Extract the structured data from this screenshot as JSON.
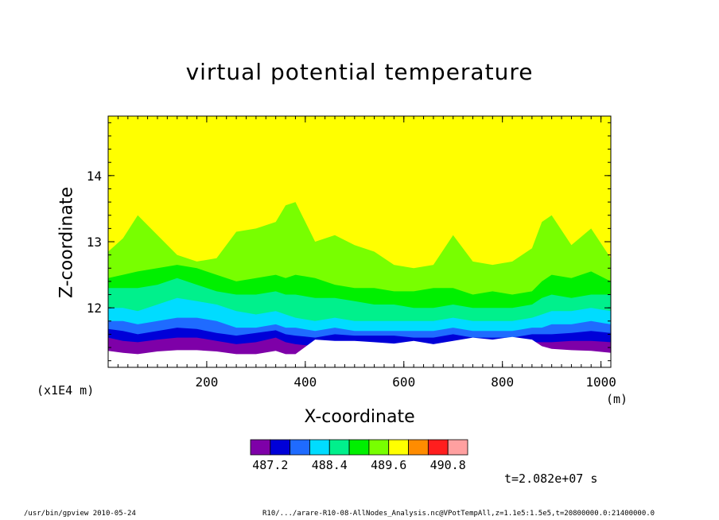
{
  "chart_data": {
    "type": "heatmap",
    "title": "virtual potential temperature",
    "xlabel": "X-coordinate",
    "ylabel": "Z-coordinate",
    "x_unit": "(m)",
    "y_scale_note": "(x1E4 m)",
    "xlim": [
      0,
      1020
    ],
    "ylim": [
      11.1,
      14.9
    ],
    "x_ticks": [
      200,
      400,
      600,
      800,
      1000
    ],
    "x_tick_labels": [
      "200",
      "400",
      "600",
      "800",
      "1000"
    ],
    "y_ticks": [
      12,
      13,
      14
    ],
    "y_tick_labels": [
      "12",
      "13",
      "14"
    ],
    "colorbar": {
      "levels": [
        487.0,
        487.2,
        487.6,
        488.0,
        488.4,
        488.8,
        489.2,
        489.6,
        490.0,
        490.4,
        490.8,
        491.2
      ],
      "labels": [
        "487.2",
        "488.4",
        "489.6",
        "490.8"
      ],
      "colors": [
        "#7e00a8",
        "#0000d8",
        "#1f6bff",
        "#00dcff",
        "#00f08c",
        "#00f000",
        "#78ff00",
        "#ffff00",
        "#ff8c00",
        "#ff1e1e",
        "#ffa0a0"
      ]
    },
    "x": [
      0,
      30,
      60,
      100,
      140,
      180,
      220,
      260,
      300,
      340,
      360,
      380,
      420,
      460,
      500,
      540,
      580,
      620,
      660,
      700,
      740,
      780,
      820,
      860,
      880,
      900,
      940,
      980,
      1020
    ],
    "contour_boundaries": [
      {
        "value": 489.6,
        "z": [
          12.85,
          13.05,
          13.4,
          13.1,
          12.8,
          12.7,
          12.75,
          13.15,
          13.2,
          13.3,
          13.55,
          13.6,
          13.0,
          13.1,
          12.95,
          12.85,
          12.65,
          12.6,
          12.65,
          13.1,
          12.7,
          12.65,
          12.7,
          12.9,
          13.3,
          13.4,
          12.95,
          13.2,
          12.75
        ]
      },
      {
        "value": 489.2,
        "z": [
          12.45,
          12.5,
          12.55,
          12.6,
          12.65,
          12.6,
          12.5,
          12.4,
          12.45,
          12.5,
          12.45,
          12.5,
          12.45,
          12.35,
          12.3,
          12.3,
          12.25,
          12.25,
          12.3,
          12.3,
          12.2,
          12.25,
          12.2,
          12.25,
          12.4,
          12.5,
          12.45,
          12.55,
          12.4
        ]
      },
      {
        "value": 488.8,
        "z": [
          12.3,
          12.3,
          12.3,
          12.35,
          12.45,
          12.35,
          12.25,
          12.2,
          12.2,
          12.25,
          12.2,
          12.2,
          12.15,
          12.15,
          12.1,
          12.05,
          12.05,
          12.0,
          12.0,
          12.05,
          12.0,
          12.0,
          12.0,
          12.05,
          12.15,
          12.2,
          12.15,
          12.2,
          12.2
        ]
      },
      {
        "value": 488.4,
        "z": [
          12.0,
          12.0,
          11.95,
          12.05,
          12.15,
          12.1,
          12.05,
          11.95,
          11.9,
          11.95,
          11.9,
          11.85,
          11.8,
          11.85,
          11.8,
          11.8,
          11.8,
          11.8,
          11.8,
          11.85,
          11.8,
          11.8,
          11.8,
          11.85,
          11.9,
          11.95,
          11.95,
          12.0,
          11.95
        ]
      },
      {
        "value": 488.0,
        "z": [
          11.8,
          11.8,
          11.75,
          11.8,
          11.85,
          11.85,
          11.8,
          11.7,
          11.7,
          11.75,
          11.7,
          11.7,
          11.65,
          11.7,
          11.65,
          11.65,
          11.65,
          11.65,
          11.65,
          11.7,
          11.65,
          11.65,
          11.65,
          11.7,
          11.7,
          11.75,
          11.75,
          11.8,
          11.75
        ]
      },
      {
        "value": 487.6,
        "z": [
          11.68,
          11.65,
          11.6,
          11.65,
          11.7,
          11.68,
          11.62,
          11.58,
          11.62,
          11.66,
          11.6,
          11.58,
          11.55,
          11.6,
          11.58,
          11.58,
          11.58,
          11.55,
          11.55,
          11.6,
          11.55,
          11.55,
          11.55,
          11.6,
          11.6,
          11.6,
          11.62,
          11.65,
          11.62
        ]
      },
      {
        "value": 487.2,
        "z": [
          11.55,
          11.5,
          11.48,
          11.52,
          11.55,
          11.55,
          11.5,
          11.45,
          11.48,
          11.55,
          11.48,
          11.45,
          11.42,
          11.48,
          11.45,
          11.45,
          11.45,
          11.42,
          11.42,
          11.48,
          11.42,
          11.42,
          11.42,
          11.48,
          11.48,
          11.48,
          11.5,
          11.5,
          11.48
        ]
      },
      {
        "value": 487.0,
        "z": [
          11.35,
          11.32,
          11.3,
          11.34,
          11.36,
          11.36,
          11.34,
          11.3,
          11.3,
          11.35,
          11.3,
          11.3,
          11.52,
          11.5,
          11.5,
          11.48,
          11.46,
          11.5,
          11.45,
          11.5,
          11.55,
          11.52,
          11.56,
          11.52,
          11.42,
          11.38,
          11.36,
          11.35,
          11.32
        ]
      }
    ],
    "grid": false,
    "legend": "colorbar-bottom"
  },
  "annotations": {
    "time_label": "t=2.082e+07 s",
    "footer_left": "/usr/bin/gpview   2010-05-24",
    "footer_right": "R10/.../arare-R10-08-AllNodes_Analysis.nc@VPotTempAll,z=1.1e5:1.5e5,t=20800000.0:21400000.0"
  }
}
